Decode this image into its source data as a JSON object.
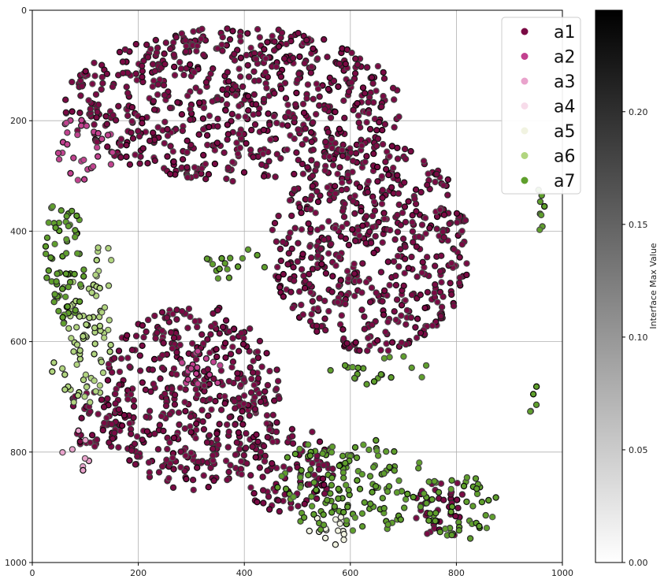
{
  "chart_data": {
    "type": "scatter",
    "title": "",
    "xlabel": "",
    "ylabel": "",
    "xlim": [
      0,
      1000
    ],
    "ylim": [
      1000,
      0
    ],
    "y_inverted": true,
    "x_ticks": [
      0,
      200,
      400,
      600,
      800,
      1000
    ],
    "y_ticks": [
      0,
      200,
      400,
      600,
      800,
      1000
    ],
    "grid": true,
    "legend_position": "top-right",
    "series": [
      {
        "name": "a1",
        "color": "#7a0a44"
      },
      {
        "name": "a2",
        "color": "#c2418f"
      },
      {
        "name": "a3",
        "color": "#e9a3cc"
      },
      {
        "name": "a4",
        "color": "#f7dcea"
      },
      {
        "name": "a5",
        "color": "#f1f3e1"
      },
      {
        "name": "a6",
        "color": "#b1d57f"
      },
      {
        "name": "a7",
        "color": "#5f9f2c"
      }
    ],
    "colorbar": {
      "label": "Interface Max Value",
      "min": 0.0,
      "max": 0.245,
      "ticks": [
        "0.00",
        "0.05",
        "0.10",
        "0.15",
        "0.20"
      ],
      "tick_values": [
        0.0,
        0.05,
        0.1,
        0.15,
        0.2
      ],
      "colormap": "Greys"
    },
    "regions": [
      {
        "series": "a1",
        "cx": 380,
        "cy": 170,
        "rx": 320,
        "ry": 140,
        "density": 0.9
      },
      {
        "series": "a1",
        "cx": 640,
        "cy": 430,
        "rx": 190,
        "ry": 190,
        "density": 0.9
      },
      {
        "series": "a1",
        "cx": 300,
        "cy": 700,
        "rx": 170,
        "ry": 170,
        "density": 0.9
      },
      {
        "series": "a1",
        "cx": 120,
        "cy": 740,
        "rx": 60,
        "ry": 60,
        "density": 0.8
      },
      {
        "series": "a1",
        "cx": 480,
        "cy": 830,
        "rx": 90,
        "ry": 80,
        "density": 0.8
      },
      {
        "series": "a1",
        "cx": 770,
        "cy": 900,
        "rx": 50,
        "ry": 60,
        "density": 0.7
      },
      {
        "series": "a2",
        "cx": 320,
        "cy": 650,
        "rx": 40,
        "ry": 40,
        "density": 0.6
      },
      {
        "series": "a2",
        "cx": 100,
        "cy": 250,
        "rx": 60,
        "ry": 60,
        "density": 0.5
      },
      {
        "series": "a3",
        "cx": 80,
        "cy": 800,
        "rx": 30,
        "ry": 40,
        "density": 0.4
      },
      {
        "series": "a5",
        "cx": 560,
        "cy": 940,
        "rx": 40,
        "ry": 30,
        "density": 0.7
      },
      {
        "series": "a6",
        "cx": 90,
        "cy": 600,
        "rx": 60,
        "ry": 120,
        "density": 0.6
      },
      {
        "series": "a6",
        "cx": 130,
        "cy": 470,
        "rx": 30,
        "ry": 60,
        "density": 0.4
      },
      {
        "series": "a7",
        "cx": 60,
        "cy": 450,
        "rx": 40,
        "ry": 120,
        "density": 0.8
      },
      {
        "series": "a7",
        "cx": 600,
        "cy": 860,
        "rx": 150,
        "ry": 90,
        "density": 0.6
      },
      {
        "series": "a7",
        "cx": 800,
        "cy": 900,
        "rx": 80,
        "ry": 60,
        "density": 0.6
      },
      {
        "series": "a7",
        "cx": 960,
        "cy": 360,
        "rx": 10,
        "ry": 80,
        "density": 0.6
      },
      {
        "series": "a7",
        "cx": 950,
        "cy": 720,
        "rx": 15,
        "ry": 40,
        "density": 0.5
      },
      {
        "series": "a7",
        "cx": 380,
        "cy": 460,
        "rx": 60,
        "ry": 30,
        "density": 0.5
      },
      {
        "series": "a7",
        "cx": 650,
        "cy": 650,
        "rx": 100,
        "ry": 30,
        "density": 0.4
      }
    ]
  }
}
